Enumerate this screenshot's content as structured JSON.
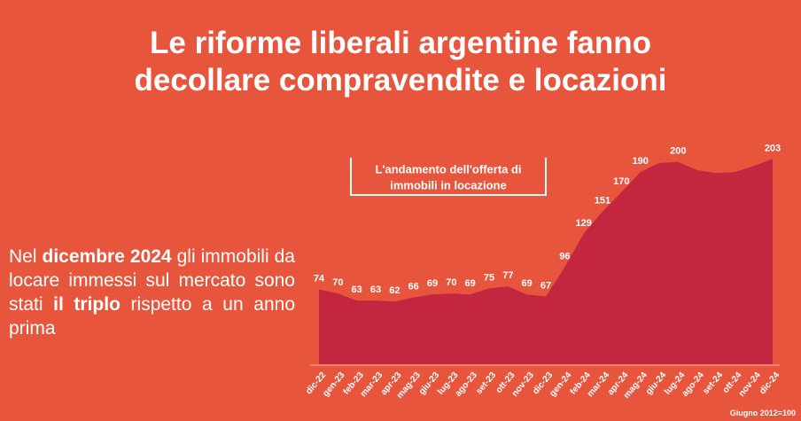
{
  "title": [
    "Le riforme liberali argentine fanno",
    "decollare compravendite e locazioni"
  ],
  "text": [
    "Nel ",
    "dicembre 2024",
    " gli immobili da locare immessi sul mercato sono stati ",
    "il triplo",
    " rispetto a un anno prima"
  ],
  "chart_data": {
    "type": "area",
    "title": [
      "L'andamento dell'offerta di",
      "immobili in locazione"
    ],
    "note": "Giugno 2012=100",
    "categories": [
      "dic-22",
      "gen-23",
      "feb-23",
      "mar-23",
      "apr-23",
      "mag-23",
      "giu-23",
      "lug-23",
      "ago-23",
      "set-23",
      "ott-23",
      "nov-23",
      "dic-23",
      "gen-24",
      "feb-24",
      "mar-24",
      "apr-24",
      "mag-24",
      "giu-24",
      "lug-24",
      "ago-24",
      "set-24",
      "ott-24",
      "nov-24",
      "dic-24"
    ],
    "values": [
      74,
      70,
      63,
      63,
      62,
      66,
      69,
      70,
      69,
      75,
      77,
      69,
      67,
      96,
      129,
      151,
      170,
      190,
      199,
      200,
      192,
      189,
      190,
      196,
      203
    ],
    "value_labels": [
      "74",
      "70",
      "63",
      "63",
      "62",
      "66",
      "69",
      "70",
      "69",
      "75",
      "77",
      "69",
      "67",
      "96",
      "129",
      "151",
      "170",
      "190",
      null,
      "200",
      null,
      null,
      null,
      null,
      "203"
    ],
    "color": "#c4263f",
    "ylim": [
      0,
      205
    ]
  }
}
